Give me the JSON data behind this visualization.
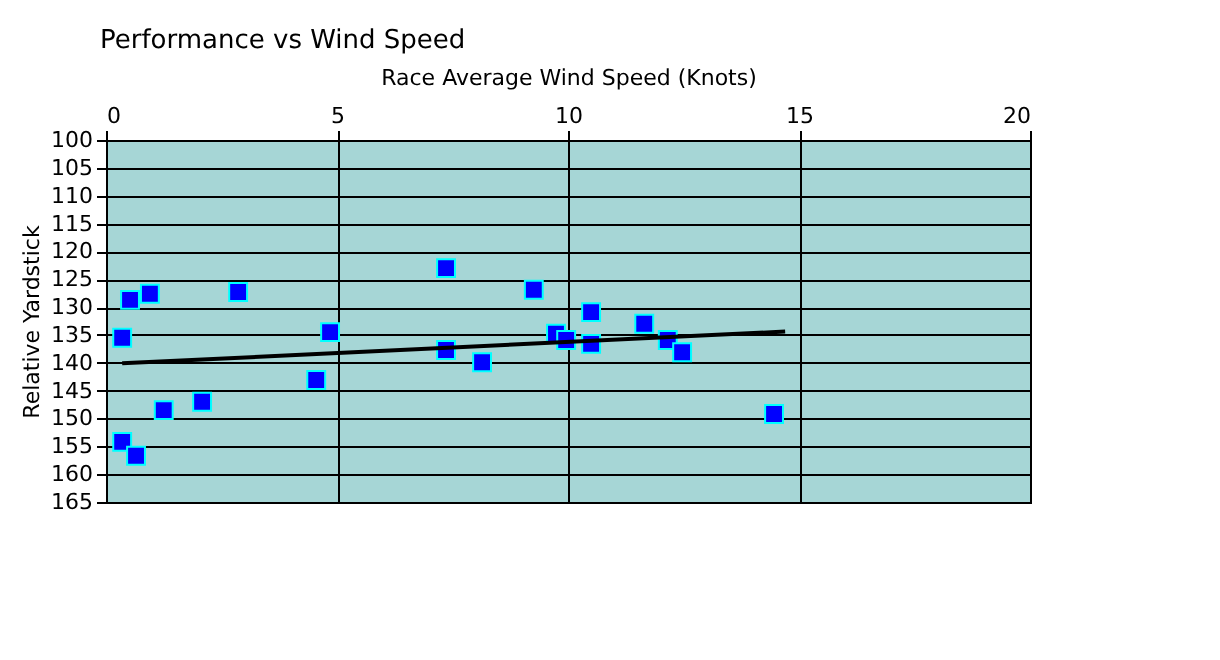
{
  "chart_data": {
    "type": "scatter",
    "title": "Performance vs Wind Speed",
    "xlabel": "Race Average Wind Speed (Knots)",
    "ylabel": "Relative Yardstick",
    "xlim": [
      0,
      20
    ],
    "xticks": [
      0,
      5,
      10,
      15,
      20
    ],
    "ylim": [
      165,
      100
    ],
    "yticks": [
      100,
      105,
      110,
      115,
      120,
      125,
      130,
      135,
      140,
      145,
      150,
      155,
      160,
      165
    ],
    "grid": true,
    "marker": "square",
    "series": [
      {
        "color": "#0000ff",
        "x": [
          0.35,
          0.52,
          0.95,
          0.35,
          0.65,
          1.25,
          2.08,
          2.86,
          4.55,
          4.85,
          7.36,
          7.36,
          8.14,
          9.26,
          9.74,
          9.96,
          10.5,
          10.5,
          11.65,
          12.16,
          12.47,
          14.46
        ],
        "values": [
          135.5,
          128.7,
          127.6,
          154.2,
          156.7,
          148.5,
          147,
          127.3,
          143.1,
          134.5,
          123,
          137.7,
          139.9,
          126.9,
          134.8,
          135.9,
          130.9,
          136.6,
          133,
          135.9,
          138.1,
          149.2
        ]
      },
      {
        "type": "line",
        "color": "#000000",
        "x": [
          0.35,
          14.7
        ],
        "values": [
          140.1,
          134.4
        ],
        "line_style": "solid",
        "marker": "none"
      }
    ]
  }
}
